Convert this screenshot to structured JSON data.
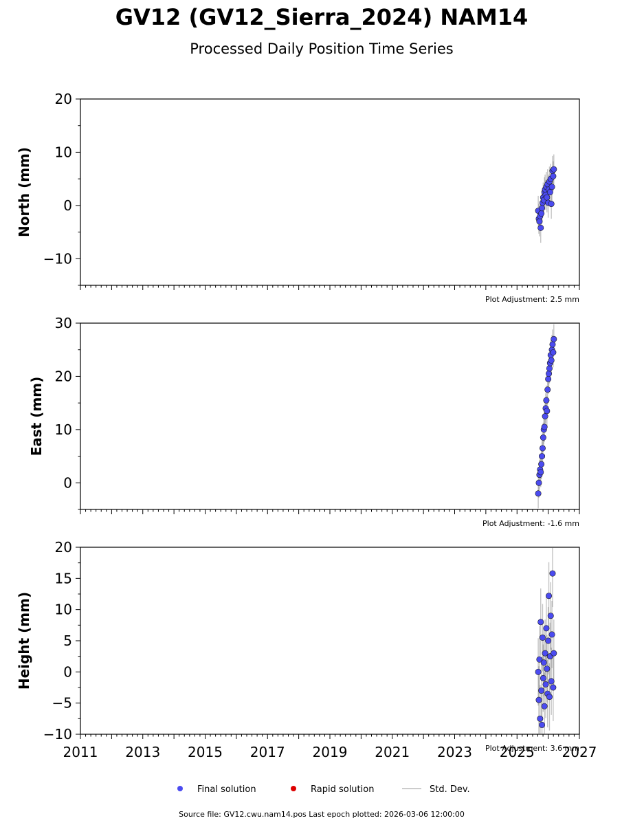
{
  "title": "GV12 (GV12_Sierra_2024) NAM14",
  "subtitle": "Processed Daily Position Time Series",
  "footer": "Source file: GV12.cwu.nam14.pos  Last epoch plotted: 2026-03-06 12:00:00",
  "legend": {
    "final": "Final solution",
    "rapid": "Rapid solution",
    "std": "Std. Dev."
  },
  "colors": {
    "final": "#4b4bf0",
    "rapid": "#dd0000",
    "std": "#b0b0b0"
  },
  "chart_data": [
    {
      "type": "scatter",
      "ylabel": "North (mm)",
      "adjustment": "Plot Adjustment: 2.5 mm",
      "xlim": [
        2011,
        2027
      ],
      "ylim": [
        -15,
        20
      ],
      "yticks": [
        -10,
        0,
        10,
        20
      ],
      "xticks": [],
      "series": [
        {
          "x": [
            2025.68,
            2025.7,
            2025.72,
            2025.74,
            2025.76,
            2025.78,
            2025.8,
            2025.82,
            2025.84,
            2025.86,
            2025.88,
            2025.9,
            2025.92,
            2025.94,
            2025.96,
            2025.98,
            2026.0,
            2026.02,
            2026.04,
            2026.06,
            2026.08,
            2026.1,
            2026.12,
            2026.14,
            2026.16,
            2026.18
          ],
          "y": [
            -1.0,
            -2.5,
            -3.0,
            -2.0,
            -4.2,
            -1.5,
            -0.5,
            0.5,
            1.5,
            1.0,
            2.5,
            3.0,
            2.0,
            3.5,
            1.5,
            4.0,
            0.5,
            3.0,
            4.5,
            2.5,
            5.0,
            0.3,
            3.5,
            6.5,
            5.5,
            6.8
          ]
        }
      ]
    },
    {
      "type": "scatter",
      "ylabel": "East (mm)",
      "adjustment": "Plot Adjustment: -1.6 mm",
      "xlim": [
        2011,
        2027
      ],
      "ylim": [
        -5,
        30
      ],
      "yticks": [
        0,
        10,
        20,
        30
      ],
      "xticks": [],
      "series": [
        {
          "x": [
            2025.68,
            2025.7,
            2025.72,
            2025.74,
            2025.76,
            2025.78,
            2025.8,
            2025.82,
            2025.84,
            2025.86,
            2025.88,
            2025.9,
            2025.92,
            2025.94,
            2025.96,
            2025.98,
            2026.0,
            2026.02,
            2026.04,
            2026.06,
            2026.08,
            2026.1,
            2026.12,
            2026.14,
            2026.16,
            2026.18
          ],
          "y": [
            -2.0,
            0.0,
            1.5,
            2.5,
            2.0,
            3.5,
            5.0,
            6.5,
            8.5,
            10.0,
            10.5,
            12.5,
            14.0,
            15.5,
            13.5,
            17.5,
            19.5,
            20.5,
            21.5,
            22.5,
            24.0,
            23.0,
            25.0,
            26.0,
            24.5,
            27.0
          ]
        }
      ]
    },
    {
      "type": "scatter",
      "ylabel": "Height (mm)",
      "adjustment": "Plot Adjustment: 3.6 mm",
      "xlim": [
        2011,
        2027
      ],
      "ylim": [
        -10,
        20
      ],
      "yticks": [
        -10,
        -5,
        0,
        5,
        10,
        15,
        20
      ],
      "xticks": [
        2011,
        2013,
        2015,
        2017,
        2019,
        2021,
        2023,
        2025,
        2027
      ],
      "series": [
        {
          "x": [
            2025.68,
            2025.7,
            2025.72,
            2025.74,
            2025.76,
            2025.78,
            2025.8,
            2025.82,
            2025.84,
            2025.86,
            2025.88,
            2025.9,
            2025.92,
            2025.94,
            2025.96,
            2025.98,
            2026.0,
            2026.02,
            2026.04,
            2026.06,
            2026.08,
            2026.1,
            2026.12,
            2026.14,
            2026.16,
            2026.18
          ],
          "y": [
            0.0,
            -4.5,
            2.0,
            -7.5,
            8.0,
            -3.0,
            -8.5,
            5.5,
            -1.0,
            1.5,
            -5.5,
            3.0,
            -2.0,
            7.0,
            0.5,
            -3.5,
            5.0,
            12.2,
            -4.0,
            2.5,
            9.0,
            -1.5,
            6.0,
            15.8,
            -2.5,
            3.0
          ]
        }
      ]
    }
  ]
}
